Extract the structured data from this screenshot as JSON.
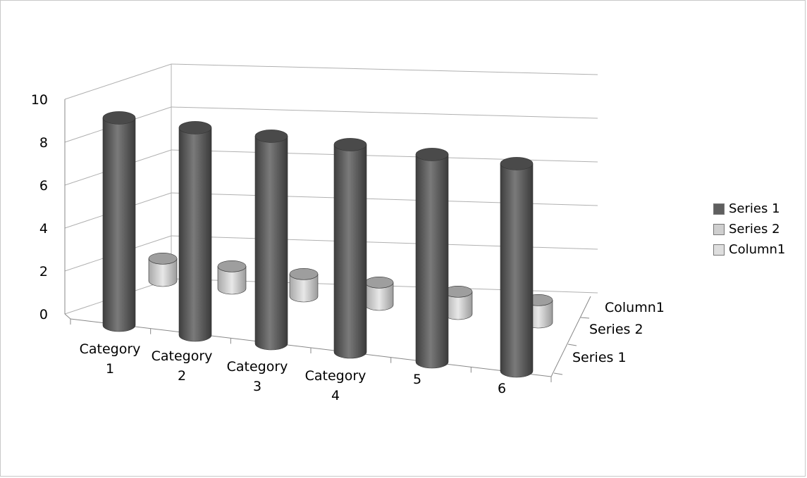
{
  "chart_data": {
    "type": "bar",
    "style": "3d-cylinder",
    "categories": [
      [
        "Category",
        "1"
      ],
      [
        "Category",
        "2"
      ],
      [
        "Category",
        "3"
      ],
      [
        "Category",
        "4"
      ],
      [
        "",
        "5"
      ],
      [
        "",
        "6"
      ]
    ],
    "series": [
      {
        "name": "Series 1",
        "values": [
          8.9,
          8.9,
          8.9,
          8.9,
          8.9,
          8.9
        ],
        "color": "#5f5f5f"
      },
      {
        "name": "Series 2",
        "values": [
          1.0,
          1.0,
          1.0,
          1.0,
          1.0,
          1.0
        ],
        "color": "#cfcfcf"
      },
      {
        "name": "Column1",
        "values": [
          0,
          0,
          0,
          0,
          0,
          0
        ],
        "color": "#dedede"
      }
    ],
    "depth_labels": [
      "Column1",
      "Series 2",
      "Series 1"
    ],
    "yticks": [
      0,
      2,
      4,
      6,
      8,
      10
    ],
    "ylim": [
      0,
      10
    ],
    "grid": true,
    "legend_position": "right"
  }
}
